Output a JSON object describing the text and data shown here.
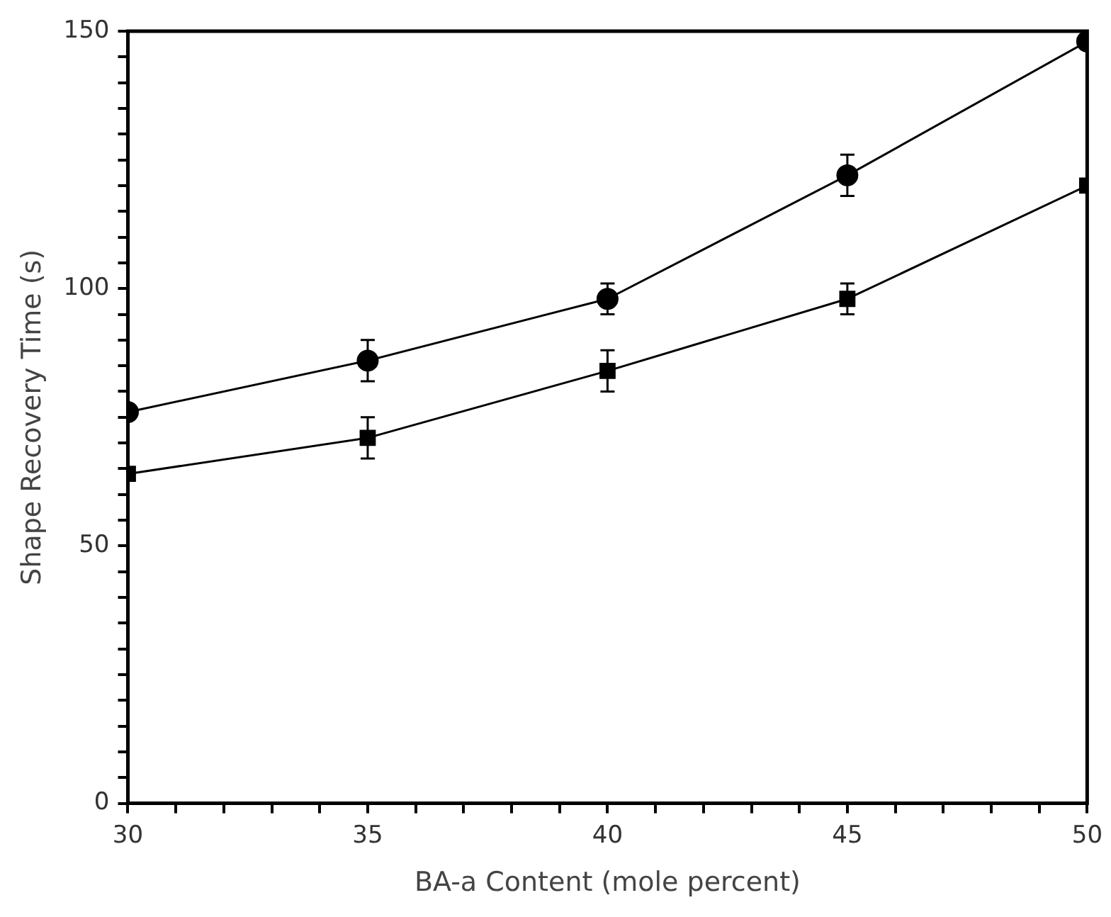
{
  "chart_data": {
    "type": "line",
    "xlabel": "BA-a Content (mole percent)",
    "ylabel": "Shape Recovery Time (s)",
    "x": [
      30,
      35,
      40,
      45,
      50
    ],
    "series": [
      {
        "color": "#000000",
        "marker": "circle",
        "values": [
          76,
          86,
          98,
          122,
          148
        ],
        "errors": [
          null,
          4,
          3,
          4,
          null
        ]
      },
      {
        "color": "#000000",
        "marker": "square",
        "values": [
          64,
          71,
          84,
          98,
          120
        ],
        "errors": [
          null,
          4,
          4,
          3,
          null
        ]
      }
    ],
    "xlim": [
      30,
      50
    ],
    "xticks": [
      30,
      {
        "value": 31,
        "label": null
      },
      {
        "value": 32,
        "label": null
      },
      {
        "value": 33,
        "label": null
      },
      {
        "value": 34,
        "label": null
      },
      35,
      {
        "value": 36,
        "label": null
      },
      {
        "value": 37,
        "label": null
      },
      {
        "value": 38,
        "label": null
      },
      {
        "value": 39,
        "label": null
      },
      40,
      {
        "value": 41,
        "label": null
      },
      {
        "value": 42,
        "label": null
      },
      {
        "value": 43,
        "label": null
      },
      {
        "value": 44,
        "label": null
      },
      45,
      {
        "value": 46,
        "label": null
      },
      {
        "value": 47,
        "label": null
      },
      {
        "value": 48,
        "label": null
      },
      {
        "value": 49,
        "label": null
      },
      50
    ],
    "ylim": [
      0,
      150
    ],
    "yticks": [
      0,
      {
        "value": 5,
        "label": null
      },
      {
        "value": 10,
        "label": null
      },
      {
        "value": 15,
        "label": null
      },
      {
        "value": 20,
        "label": null
      },
      {
        "value": 25,
        "label": null
      },
      {
        "value": 30,
        "label": null
      },
      {
        "value": 35,
        "label": null
      },
      {
        "value": 40,
        "label": null
      },
      {
        "value": 45,
        "label": null
      },
      50,
      {
        "value": 55,
        "label": null
      },
      {
        "value": 60,
        "label": null
      },
      {
        "value": 65,
        "label": null
      },
      {
        "value": 70,
        "label": null
      },
      {
        "value": 75,
        "label": null
      },
      {
        "value": 80,
        "label": null
      },
      {
        "value": 85,
        "label": null
      },
      {
        "value": 90,
        "label": null
      },
      {
        "value": 95,
        "label": null
      },
      100,
      {
        "value": 105,
        "label": null
      },
      {
        "value": 110,
        "label": null
      },
      {
        "value": 115,
        "label": null
      },
      {
        "value": 120,
        "label": null
      },
      {
        "value": 125,
        "label": null
      },
      {
        "value": 130,
        "label": null
      },
      {
        "value": 135,
        "label": null
      },
      {
        "value": 140,
        "label": null
      },
      {
        "value": 145,
        "label": null
      },
      150
    ],
    "grid": false,
    "legend": false,
    "line_style": "solid"
  }
}
